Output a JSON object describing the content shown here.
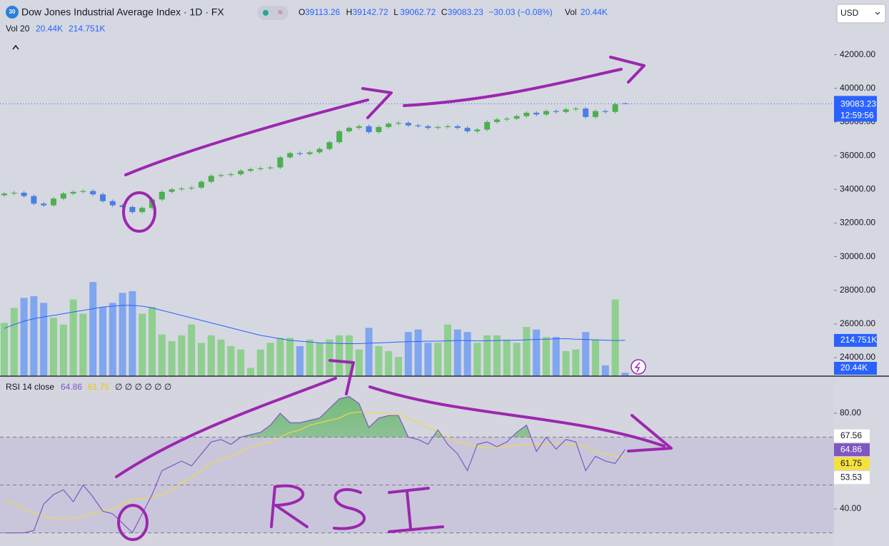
{
  "header": {
    "badge": "30",
    "title": "Dow Jones Industrial Average Index · 1D · FX",
    "ohlc": [
      {
        "label": "O",
        "value": 39113.26
      },
      {
        "label": "H",
        "value": 39142.72
      },
      {
        "label": "L",
        "value": 39062.72
      },
      {
        "label": "C",
        "value": 39083.23
      }
    ],
    "change": "−30.03 (−0.08%)",
    "vol_label": "Vol",
    "vol_value": "20.44K",
    "vol_line": "Vol 20",
    "vol_line_values": [
      "20.44K",
      "214.751K"
    ],
    "currency": "USD"
  },
  "chart_data": [
    {
      "type": "candlestick",
      "up_color": "#4caf50",
      "down_color": "#4a7fe0",
      "open": [
        33650,
        33750,
        33800,
        33600,
        33150,
        33050,
        33450,
        33750,
        33850,
        33900,
        33700,
        33300,
        33050,
        32950,
        32650,
        32900,
        33400,
        33850,
        34000,
        34050,
        34100,
        34450,
        34800,
        34850,
        34900,
        35100,
        35200,
        35250,
        35300,
        35900,
        36150,
        36100,
        36200,
        36400,
        36800,
        37450,
        37650,
        37750,
        37400,
        37700,
        37900,
        37950,
        37800,
        37750,
        37650,
        37700,
        37750,
        37650,
        37450,
        37550,
        38000,
        38150,
        38200,
        38350,
        38550,
        38450,
        38650,
        38600,
        38750,
        38800,
        38300,
        38650,
        38600,
        39113.26
      ],
      "high": [
        33850,
        33900,
        33900,
        33700,
        33250,
        33550,
        33850,
        33950,
        34000,
        34000,
        33800,
        33400,
        33150,
        33050,
        33000,
        33500,
        33950,
        34100,
        34150,
        34200,
        34550,
        34900,
        34950,
        35000,
        35200,
        35300,
        35350,
        35400,
        36000,
        36250,
        36250,
        36300,
        36500,
        36900,
        37550,
        37750,
        37850,
        37850,
        37800,
        38000,
        38050,
        38050,
        37900,
        37850,
        37800,
        37850,
        37850,
        37750,
        37650,
        38100,
        38250,
        38300,
        38450,
        38650,
        38650,
        38750,
        38750,
        38850,
        38900,
        38900,
        38750,
        38750,
        39150,
        39142.72
      ],
      "low": [
        33550,
        33650,
        33500,
        33050,
        32950,
        32950,
        33350,
        33650,
        33750,
        33600,
        33200,
        32950,
        32850,
        32550,
        32550,
        32800,
        33300,
        33750,
        33900,
        33950,
        34000,
        34350,
        34700,
        34750,
        34800,
        35000,
        35100,
        35150,
        35200,
        35800,
        36000,
        36000,
        36100,
        36300,
        36700,
        37350,
        37550,
        37300,
        37300,
        37600,
        37800,
        37700,
        37650,
        37550,
        37550,
        37600,
        37550,
        37350,
        37350,
        37450,
        37900,
        38050,
        38100,
        38250,
        38350,
        38350,
        38500,
        38500,
        38650,
        38200,
        38200,
        38500,
        38500,
        39062.72
      ],
      "close": [
        33750,
        33800,
        33600,
        33150,
        33050,
        33450,
        33750,
        33850,
        33900,
        33700,
        33300,
        33050,
        32950,
        32650,
        32900,
        33400,
        33850,
        34000,
        34050,
        34100,
        34450,
        34800,
        34850,
        34900,
        35100,
        35200,
        35250,
        35300,
        35900,
        36150,
        36100,
        36200,
        36400,
        36800,
        37450,
        37650,
        37750,
        37400,
        37700,
        37900,
        37950,
        37800,
        37750,
        37650,
        37700,
        37750,
        37650,
        37450,
        37550,
        38000,
        38150,
        38200,
        38350,
        38550,
        38450,
        38650,
        38600,
        38750,
        38800,
        38300,
        38650,
        38600,
        39050,
        39083.23
      ],
      "ylim": [
        22900,
        45250
      ],
      "yticks": [
        {
          "value": 42000,
          "label": "42000.00"
        },
        {
          "value": 40000,
          "label": "40000.00"
        },
        {
          "value": 38000,
          "label": "38000.00"
        },
        {
          "value": 36000,
          "label": "36000.00"
        },
        {
          "value": 34000,
          "label": "34000.00"
        },
        {
          "value": 32000,
          "label": "32000.00"
        },
        {
          "value": 30000,
          "label": "30000.00"
        },
        {
          "value": 28000,
          "label": "28000.00"
        },
        {
          "value": 26000,
          "label": "26000.00"
        },
        {
          "value": 24000,
          "label": "24000.00"
        }
      ],
      "last_price": 39083.23,
      "countdown": "12:59:56",
      "last_color": "#2962ff"
    },
    {
      "type": "bar",
      "name": "Vol 20",
      "up_color": "#8fcf8f",
      "down_color": "#7fa6ee",
      "ma_color": "#2962ff",
      "values": [
        320,
        410,
        470,
        480,
        440,
        350,
        310,
        460,
        375,
        565,
        415,
        440,
        500,
        510,
        375,
        415,
        250,
        210,
        245,
        310,
        200,
        245,
        220,
        180,
        160,
        50,
        160,
        200,
        230,
        230,
        180,
        220,
        200,
        220,
        245,
        245,
        160,
        290,
        180,
        150,
        115,
        265,
        280,
        200,
        200,
        310,
        280,
        265,
        200,
        245,
        245,
        220,
        200,
        295,
        280,
        235,
        235,
        150,
        160,
        265,
        220,
        65,
        460,
        20.44
      ],
      "ma": [
        287,
        310,
        330,
        345,
        355,
        365,
        375,
        385,
        395,
        405,
        415,
        420,
        425,
        425,
        420,
        410,
        395,
        380,
        365,
        350,
        335,
        320,
        305,
        290,
        275,
        260,
        245,
        235,
        225,
        215,
        210,
        205,
        200,
        198,
        196,
        195,
        195,
        198,
        200,
        202,
        205,
        207,
        208,
        210,
        210,
        212,
        214,
        214,
        212,
        212,
        214,
        215,
        216,
        218,
        220,
        222,
        224,
        225,
        222,
        220,
        218,
        216,
        214,
        214.751
      ],
      "ylim": [
        0,
        630
      ],
      "last_labels": [
        {
          "value": 214.751,
          "label": "214.751K"
        },
        {
          "value": 20.44,
          "label": "20.44K"
        }
      ]
    },
    {
      "type": "line",
      "title": "RSI 14 close",
      "legend_values": [
        "64.86",
        "61.75"
      ],
      "legend_extra": "∅ ∅ ∅ ∅ ∅ ∅",
      "series": [
        {
          "name": "RSI",
          "color": "#7e57c2",
          "values": [
            30,
            30,
            30,
            31,
            42,
            46,
            48,
            43,
            50,
            45,
            39,
            38,
            34,
            30,
            38,
            46,
            56,
            58,
            60,
            58,
            63,
            68,
            69,
            67,
            70,
            71,
            72,
            75,
            80,
            76,
            76,
            77,
            78,
            82,
            86,
            87,
            84,
            74,
            78,
            79,
            79,
            70,
            69,
            67,
            73,
            67,
            63,
            56,
            67,
            68,
            66,
            68,
            72,
            75,
            64,
            70,
            65,
            69,
            68,
            56,
            62,
            60,
            59,
            64.86
          ]
        },
        {
          "name": "RSI MA",
          "color": "#f0d84a",
          "values": [
            44,
            42,
            40,
            38,
            37,
            36,
            36,
            36,
            37,
            38,
            39,
            40,
            42,
            44,
            44,
            45,
            46,
            48,
            51,
            53,
            56,
            59,
            61,
            62,
            64,
            66,
            67,
            68,
            70,
            72,
            73,
            75,
            76,
            77,
            78,
            80,
            80.5,
            80.5,
            80,
            80,
            79.5,
            78,
            76,
            74,
            72,
            70,
            68,
            67,
            66,
            65.5,
            65.5,
            66,
            66.5,
            67,
            67,
            67,
            67.5,
            67,
            67,
            66,
            64,
            63,
            62,
            61.75
          ]
        }
      ],
      "bands": [
        70,
        50,
        30
      ],
      "ylim": [
        24.5,
        95.5
      ],
      "yticks": [
        {
          "value": 80,
          "label": "80.00"
        },
        {
          "value": 40,
          "label": "40.00"
        }
      ],
      "scale_labels": [
        {
          "value": 67.56,
          "bg": "#ffffff",
          "fg": "#131722"
        },
        {
          "value": 64.86,
          "bg": "#7e57c2",
          "fg": "#ffffff"
        },
        {
          "value": 61.75,
          "bg": "#f5e13d",
          "fg": "#131722"
        },
        {
          "value": 53.53,
          "bg": "#ffffff",
          "fg": "#131722"
        }
      ]
    }
  ]
}
